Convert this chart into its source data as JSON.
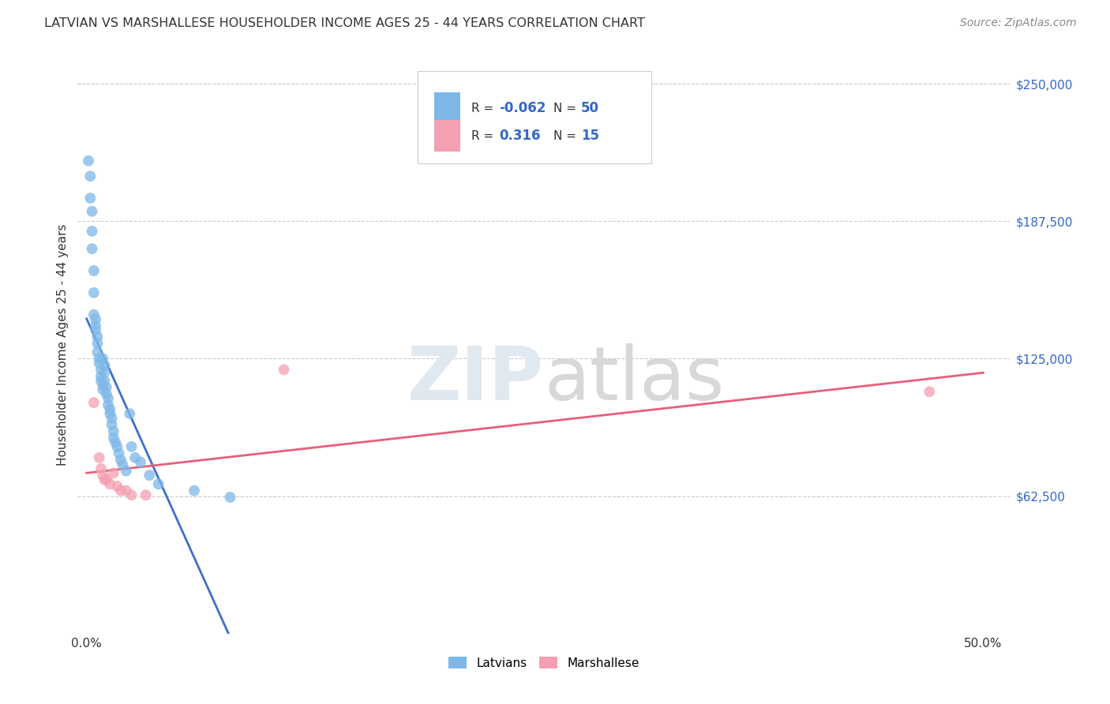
{
  "title": "LATVIAN VS MARSHALLESE HOUSEHOLDER INCOME AGES 25 - 44 YEARS CORRELATION CHART",
  "source": "Source: ZipAtlas.com",
  "ylabel": "Householder Income Ages 25 - 44 years",
  "xlim": [
    0.0,
    0.5
  ],
  "ylim": [
    0,
    262500
  ],
  "yticks": [
    62500,
    125000,
    187500,
    250000
  ],
  "ytick_labels": [
    "$62,500",
    "$125,000",
    "$187,500",
    "$250,000"
  ],
  "xtick_vals": [
    0.0,
    0.1,
    0.2,
    0.3,
    0.4,
    0.5
  ],
  "xtick_labels": [
    "0.0%",
    "",
    "",
    "",
    "",
    "50.0%"
  ],
  "latvian_color": "#7db8e8",
  "marshallese_color": "#f4a0b0",
  "latvian_line_color": "#3b6fcc",
  "marshallese_line_color": "#e8607a",
  "dashed_line_color": "#aaccee",
  "legend_latvian_label": "Latvians",
  "legend_marshallese_label": "Marshallese",
  "latvian_R": "-0.062",
  "latvian_N": "50",
  "marshallese_R": "0.316",
  "marshallese_N": "15",
  "latvian_x": [
    0.001,
    0.002,
    0.002,
    0.003,
    0.003,
    0.003,
    0.004,
    0.004,
    0.004,
    0.005,
    0.005,
    0.005,
    0.006,
    0.006,
    0.006,
    0.007,
    0.007,
    0.008,
    0.008,
    0.008,
    0.009,
    0.009,
    0.009,
    0.01,
    0.01,
    0.01,
    0.011,
    0.011,
    0.012,
    0.012,
    0.013,
    0.013,
    0.014,
    0.014,
    0.015,
    0.015,
    0.016,
    0.017,
    0.018,
    0.019,
    0.02,
    0.022,
    0.024,
    0.025,
    0.027,
    0.03,
    0.035,
    0.04,
    0.06,
    0.08
  ],
  "latvian_y": [
    215000,
    208000,
    198000,
    192000,
    183000,
    175000,
    165000,
    155000,
    145000,
    143000,
    140000,
    138000,
    135000,
    132000,
    128000,
    125000,
    123000,
    120000,
    117000,
    115000,
    113000,
    111000,
    125000,
    122000,
    119000,
    115000,
    112000,
    109000,
    107000,
    104000,
    102000,
    100000,
    98000,
    95000,
    92000,
    89000,
    87000,
    85000,
    82000,
    79000,
    77000,
    74000,
    100000,
    85000,
    80000,
    78000,
    72000,
    68000,
    65000,
    62000
  ],
  "marshallese_x": [
    0.004,
    0.007,
    0.008,
    0.009,
    0.01,
    0.011,
    0.013,
    0.015,
    0.017,
    0.019,
    0.022,
    0.025,
    0.033,
    0.11,
    0.47
  ],
  "marshallese_y": [
    105000,
    80000,
    75000,
    72000,
    70000,
    70000,
    68000,
    73000,
    67000,
    65000,
    65000,
    63000,
    63000,
    120000,
    110000
  ],
  "background_color": "#ffffff",
  "grid_color": "#cccccc",
  "watermark_text": "ZIPatlas",
  "marker_size": 100
}
